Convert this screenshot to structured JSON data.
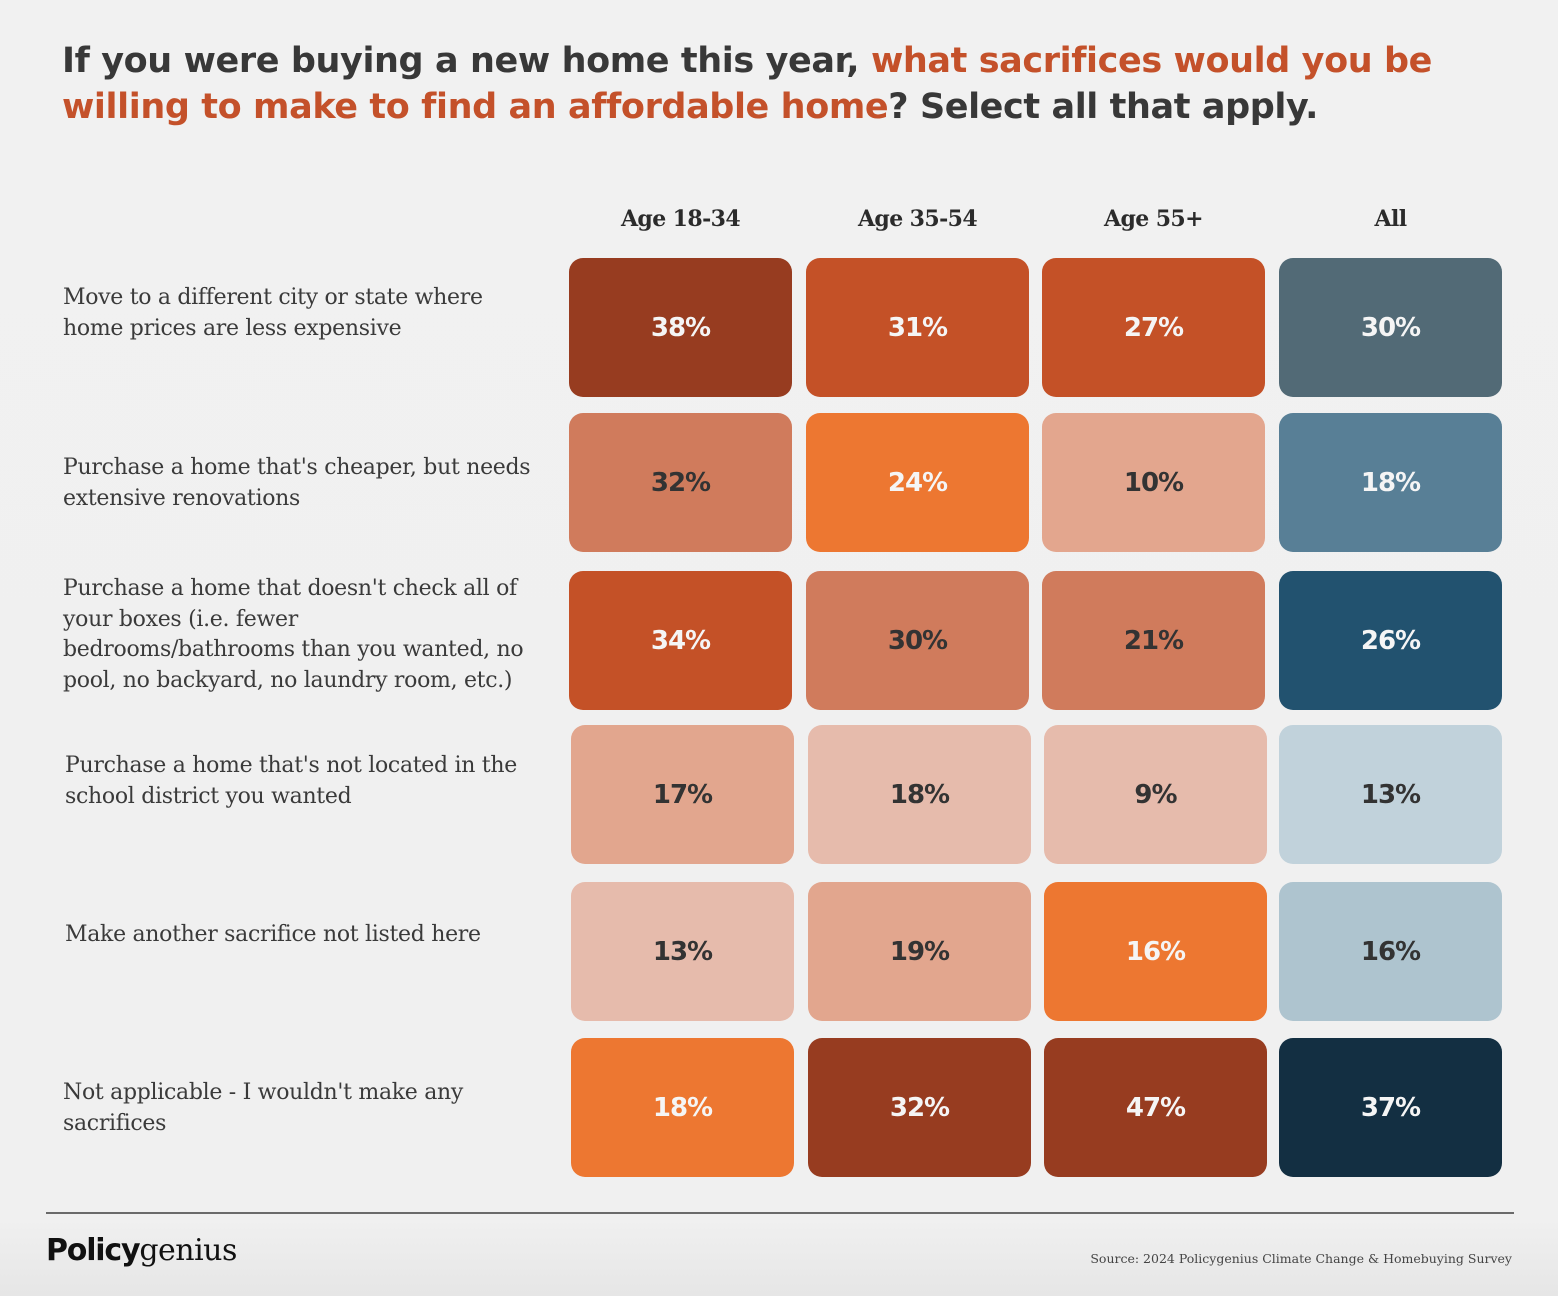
{
  "title": {
    "part1": "If you were buying a new home this year, ",
    "highlight": "what sacrifices would you be willing to make to find an affordable home",
    "part2": "? Select all that apply."
  },
  "colors": {
    "title_text": "#383838",
    "highlight": "#c4512a",
    "background": "#f1f1f1"
  },
  "chart_data": {
    "type": "heatmap",
    "title": "If you were buying a new home this year, what sacrifices would you be willing to make to find an affordable home? Select all that apply.",
    "columns": [
      "Age 18-34",
      "Age 35-54",
      "Age 55+",
      "All"
    ],
    "rows": [
      "Move to a different city or state where home prices are less expensive",
      "Purchase a home that's cheaper, but needs extensive renovations",
      "Purchase a home that doesn't check all of your boxes (i.e. fewer bedrooms/bathrooms than you wanted, no pool, no backyard, no laundry room, etc.)",
      "Purchase a home that's not located in the school district you wanted",
      "Make another sacrifice not listed here",
      "Not applicable - I wouldn't make any sacrifices"
    ],
    "values": [
      [
        38,
        31,
        27,
        30
      ],
      [
        32,
        24,
        10,
        18
      ],
      [
        34,
        30,
        21,
        26
      ],
      [
        17,
        18,
        9,
        13
      ],
      [
        13,
        19,
        16,
        16
      ],
      [
        18,
        32,
        47,
        37
      ]
    ],
    "labels": [
      [
        "38%",
        "31%",
        "27%",
        "30%"
      ],
      [
        "32%",
        "24%",
        "10%",
        "18%"
      ],
      [
        "34%",
        "30%",
        "21%",
        "26%"
      ],
      [
        "17%",
        "18%",
        "9%",
        "13%"
      ],
      [
        "13%",
        "19%",
        "16%",
        "16%"
      ],
      [
        "18%",
        "32%",
        "47%",
        "37%"
      ]
    ],
    "cell_colors": [
      [
        "#973c20",
        "#c45127",
        "#c45127",
        "#526a76"
      ],
      [
        "#d07b5c",
        "#ed7731",
        "#e3a68e",
        "#587f96"
      ],
      [
        "#c45127",
        "#d07b5c",
        "#d07b5c",
        "#22526f"
      ],
      [
        "#e2a68e",
        "#e6bbac",
        "#e6bbac",
        "#c1d2db"
      ],
      [
        "#e6bbac",
        "#e2a68e",
        "#ed7731",
        "#aec4cf"
      ],
      [
        "#ed7731",
        "#973c20",
        "#973c20",
        "#132f42"
      ]
    ],
    "text_colors": [
      [
        "#f5f5f5",
        "#f5f5f5",
        "#f5f5f5",
        "#f5f5f5"
      ],
      [
        "#333333",
        "#f5f5f5",
        "#333333",
        "#f5f5f5"
      ],
      [
        "#f5f5f5",
        "#333333",
        "#333333",
        "#f5f5f5"
      ],
      [
        "#333333",
        "#333333",
        "#333333",
        "#333333"
      ],
      [
        "#333333",
        "#333333",
        "#f5f5f5",
        "#333333"
      ],
      [
        "#f5f5f5",
        "#f5f5f5",
        "#f5f5f5",
        "#f5f5f5"
      ]
    ]
  },
  "footer": {
    "logo_bold": "Policy",
    "logo_light": "genius",
    "source": "Source: 2024 Policygenius Climate Change & Homebuying Survey"
  }
}
